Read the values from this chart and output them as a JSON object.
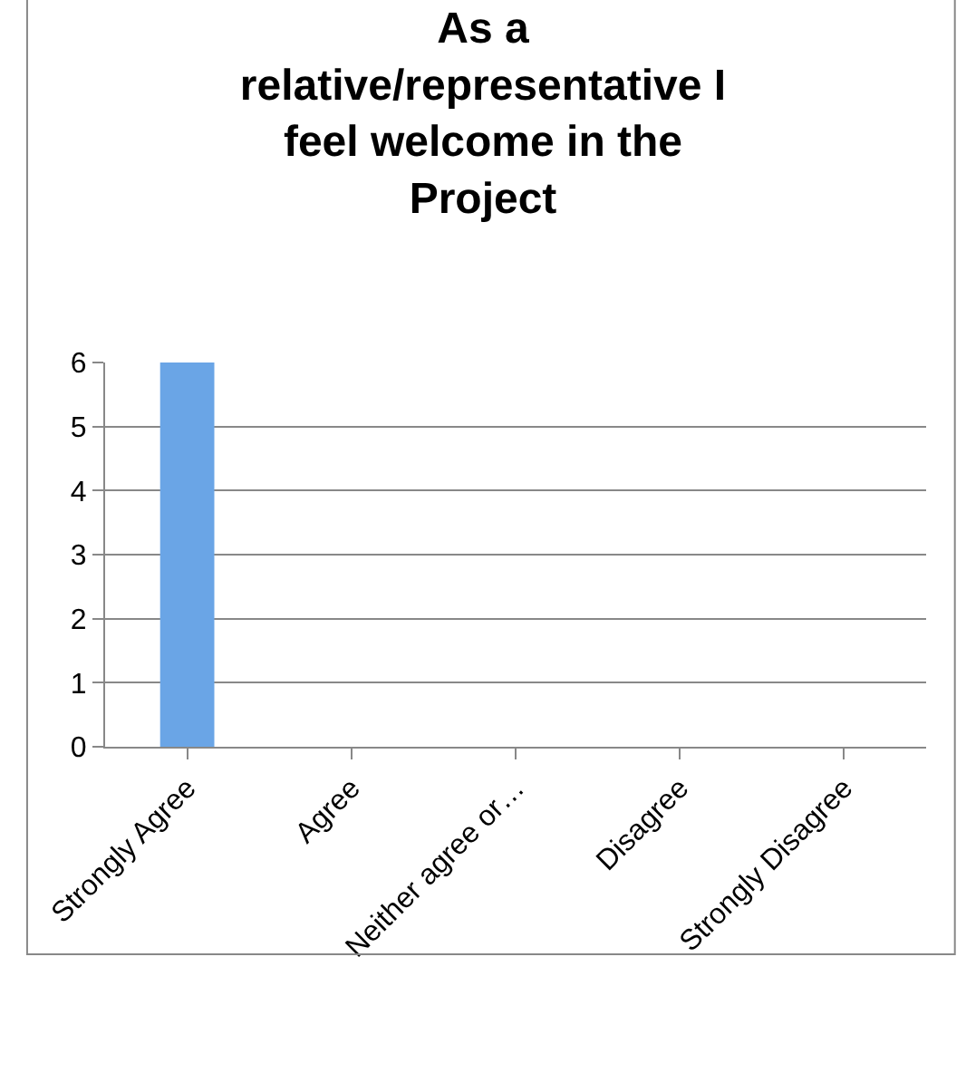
{
  "chart_data": {
    "type": "bar",
    "title": "As a\nrelative/representative I\nfeel welcome in the\nProject",
    "categories": [
      "Strongly Agree",
      "Agree",
      "Neither agree or…",
      "Disagree",
      "Strongly Disagree"
    ],
    "values": [
      6,
      0,
      0,
      0,
      0
    ],
    "color": "#6aa5e6",
    "ylim": [
      0,
      6
    ],
    "yticks": [
      0,
      1,
      2,
      3,
      4,
      5,
      6
    ],
    "grid": "y",
    "legend": false
  }
}
